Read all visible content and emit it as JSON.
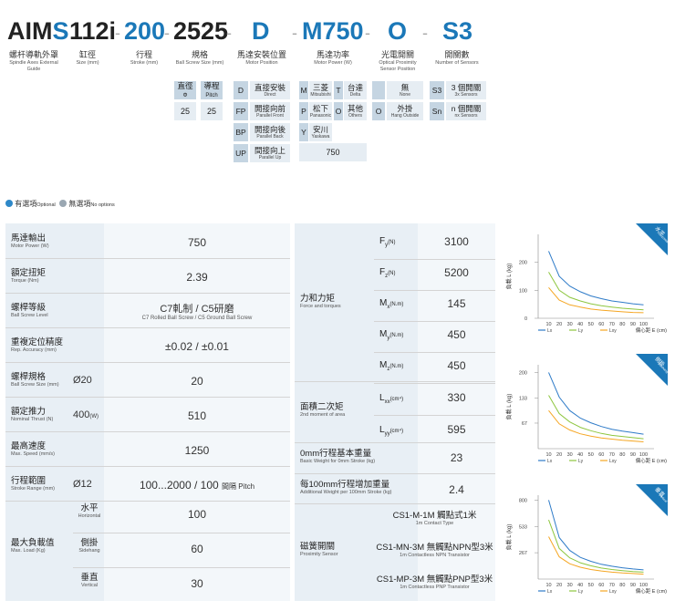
{
  "model": {
    "parts": [
      {
        "text": "AIM",
        "color": "#222"
      },
      {
        "text": "S",
        "color": "#1b78b8"
      },
      {
        "text": "112i",
        "color": "#222"
      },
      {
        "text": "200",
        "color": "#1b78b8"
      },
      {
        "text": "2525",
        "color": "#222"
      },
      {
        "text": "D",
        "color": "#1b78b8"
      },
      {
        "text": "M750",
        "color": "#1b78b8"
      },
      {
        "text": "O",
        "color": "#1b78b8"
      },
      {
        "text": "S3",
        "color": "#1b78b8"
      }
    ],
    "dash": "-"
  },
  "headers": [
    {
      "zh": "螺杆導軌外罩",
      "en": "Spindle Axes External Guide"
    },
    {
      "zh": "缸徑",
      "en": "Size (mm)"
    },
    {
      "zh": "行程",
      "en": "Stroke (mm)"
    },
    {
      "zh": "規格",
      "en": "Ball Screw Size (mm)"
    },
    {
      "zh": "馬達安裝位置",
      "en": "Motor Position"
    },
    {
      "zh": "馬達功率",
      "en": "Motor Power (W)"
    },
    {
      "zh": "光電開關",
      "en": "Optical Proximity Sensor Position"
    },
    {
      "zh": "開關數",
      "en": "Number of Sensors"
    }
  ],
  "spec": {
    "dia_zh": "直徑",
    "dia_sym": "Φ",
    "pitch_zh": "導程",
    "pitch_en": "Pitch",
    "dia_val": "25",
    "pitch_val": "25"
  },
  "mount": [
    {
      "code": "D",
      "zh": "直接安裝",
      "en": "Direct"
    },
    {
      "code": "FP",
      "zh": "開接向前",
      "en": "Parallel Front"
    },
    {
      "code": "BP",
      "zh": "開接向後",
      "en": "Parallel Back"
    },
    {
      "code": "UP",
      "zh": "間接向上",
      "en": "Parallel Up"
    }
  ],
  "motor": [
    {
      "code": "M",
      "zh": "三菱",
      "en": "Mitsubishi"
    },
    {
      "code": "T",
      "zh": "台達",
      "en": "Delta"
    },
    {
      "code": "P",
      "zh": "松下",
      "en": "Panasonic"
    },
    {
      "code": "O",
      "zh": "其他",
      "en": "Others"
    },
    {
      "code": "Y",
      "zh": "安川",
      "en": "Yaskawa"
    }
  ],
  "motor_power": "750",
  "optical": [
    {
      "code": "",
      "zh": "無",
      "en": "None"
    },
    {
      "code": "O",
      "zh": "外掛",
      "en": "Hang Outside"
    }
  ],
  "sensors": [
    {
      "code": "S3",
      "zh": "3 個開關",
      "en": "3x Sensors"
    },
    {
      "code": "Sn",
      "zh": "n 個開關",
      "en": "nx Sensors"
    }
  ],
  "legend": {
    "optional_zh": "有選項",
    "optional_en": "Optional",
    "nooption_zh": "無選項",
    "nooption_en": "No options",
    "optional_color": "#2e88c8",
    "nooption_color": "#9aa7b2"
  },
  "left_table": [
    {
      "zh": "馬達輸出",
      "en": "Motor Power (W)",
      "sub": "",
      "val": "750"
    },
    {
      "zh": "額定扭矩",
      "en": "Torque (Nm)",
      "sub": "",
      "val": "2.39"
    },
    {
      "zh": "螺桿等級",
      "en": "Ball Screw Level",
      "sub": "",
      "val": "C7軋制 / C5研磨",
      "val_en": "C7 Rolled Ball Screw / C5 Ground Ball Screw"
    },
    {
      "zh": "重複定位精度",
      "en": "Rep. Accuracy (mm)",
      "sub": "",
      "val": "±0.02 / ±0.01"
    },
    {
      "zh": "螺桿規格",
      "en": "Ball Screw Size (mm)",
      "sub": "Ø20",
      "val": "20"
    },
    {
      "zh": "額定推力",
      "en": "Nominal Thrust (N)",
      "sub": "400",
      "sub_unit": "(W)",
      "val": "510"
    },
    {
      "zh": "最高速度",
      "en": "Max. Speed (mm/s)",
      "sub": "",
      "val": "1250"
    },
    {
      "zh": "行程範圍",
      "en": "Stroke Range (mm)",
      "sub": "Ø12",
      "val": "100...2000 / 100",
      "val_suffix": "間隔 Pitch"
    }
  ],
  "max_load": {
    "zh": "最大負載值",
    "en": "Max. Load (Kg)",
    "rows": [
      {
        "zh": "水平",
        "en": "Horizontal",
        "val": "100"
      },
      {
        "zh": "側掛",
        "en": "Sidehang",
        "val": "60"
      },
      {
        "zh": "垂直",
        "en": "Vertical",
        "val": "30"
      }
    ]
  },
  "mid_table": {
    "force": {
      "zh": "力和力矩",
      "en": "Force and torques",
      "rows": [
        {
          "sym": "F",
          "sub": "y",
          "unit": "(N)",
          "val": "3100"
        },
        {
          "sym": "F",
          "sub": "z",
          "unit": "(N)",
          "val": "5200"
        },
        {
          "sym": "M",
          "sub": "x",
          "unit": "(N.m)",
          "val": "145"
        },
        {
          "sym": "M",
          "sub": "y",
          "unit": "(N.m)",
          "val": "450"
        },
        {
          "sym": "M",
          "sub": "z",
          "unit": "(N.m)",
          "val": "450"
        }
      ]
    },
    "moment": {
      "zh": "面積二次矩",
      "en": "2nd moment of area",
      "rows": [
        {
          "sym": "L",
          "sub": "xx",
          "unit": "(cm⁴)",
          "val": "330"
        },
        {
          "sym": "L",
          "sub": "yy",
          "unit": "(cm⁴)",
          "val": "595"
        }
      ]
    },
    "base_weight": {
      "zh": "0mm行程基本重量",
      "en": "Basic Weight for 0mm Stroke (kg)",
      "val": "23"
    },
    "add_weight": {
      "zh": "每100mm行程增加重量",
      "en": "Additional Weight per 100mm Stroke (kg)",
      "val": "2.4"
    },
    "proximity": {
      "zh": "磁簧開關",
      "en": "Proximity Sensor",
      "rows": [
        {
          "zh": "CS1-M-1M 觸點式1米",
          "en": "1m Contact Type"
        },
        {
          "zh": "CS1-MN-3M 無觸點NPN型3米",
          "en": "1m Contactless NPN Transistor"
        },
        {
          "zh": "CS1-MP-3M 無觸點PNP型3米",
          "en": "1m Contactless PNP Transistor"
        }
      ]
    }
  },
  "chart_data": [
    {
      "type": "line",
      "badge": "水平",
      "badge_en": "Horizontal",
      "ylabel": "負載 L (kg)",
      "xlabel": "偏心距 E (cm)",
      "x": [
        10,
        20,
        30,
        40,
        50,
        60,
        70,
        80,
        90,
        100
      ],
      "yticks": [
        0,
        100,
        200
      ],
      "ylim": [
        0,
        300
      ],
      "series": [
        {
          "name": "Lx",
          "color": "#2e7bc8",
          "values": [
            240,
            150,
            115,
            95,
            80,
            70,
            62,
            57,
            52,
            48
          ]
        },
        {
          "name": "Ly",
          "color": "#8dc63f",
          "values": [
            165,
            100,
            75,
            62,
            52,
            45,
            40,
            36,
            33,
            30
          ]
        },
        {
          "name": "Lxy",
          "color": "#f5a623",
          "values": [
            110,
            65,
            48,
            40,
            33,
            29,
            26,
            23,
            21,
            20
          ]
        }
      ]
    },
    {
      "type": "line",
      "badge": "側掛",
      "badge_en": "Sidehang",
      "ylabel": "負載 L (kg)",
      "xlabel": "偏心距 E (cm)",
      "x": [
        10,
        20,
        30,
        40,
        50,
        60,
        70,
        80,
        90,
        100
      ],
      "yticks": [
        67,
        133,
        200
      ],
      "ylim": [
        0,
        220
      ],
      "series": [
        {
          "name": "Lx",
          "color": "#2e7bc8",
          "values": [
            200,
            135,
            100,
            80,
            68,
            58,
            51,
            46,
            42,
            38
          ]
        },
        {
          "name": "Ly",
          "color": "#8dc63f",
          "values": [
            140,
            92,
            70,
            56,
            47,
            40,
            35,
            32,
            29,
            26
          ]
        },
        {
          "name": "Lxy",
          "color": "#f5a623",
          "values": [
            100,
            65,
            49,
            39,
            33,
            28,
            25,
            22,
            20,
            18
          ]
        }
      ]
    },
    {
      "type": "line",
      "badge": "垂直",
      "badge_en": "Vertical",
      "ylabel": "負載 L (kg)",
      "xlabel": "偏心距 E (cm)",
      "x": [
        10,
        20,
        30,
        40,
        50,
        60,
        70,
        80,
        90,
        100
      ],
      "yticks": [
        267,
        533,
        800
      ],
      "ylim": [
        0,
        850
      ],
      "series": [
        {
          "name": "Lx",
          "color": "#2e7bc8",
          "values": [
            800,
            420,
            290,
            220,
            180,
            150,
            130,
            115,
            103,
            93
          ]
        },
        {
          "name": "Ly",
          "color": "#8dc63f",
          "values": [
            600,
            310,
            215,
            165,
            135,
            112,
            97,
            86,
            77,
            70
          ]
        },
        {
          "name": "Lxy",
          "color": "#f5a623",
          "values": [
            430,
            225,
            155,
            120,
            97,
            82,
            70,
            62,
            56,
            50
          ]
        }
      ]
    }
  ]
}
